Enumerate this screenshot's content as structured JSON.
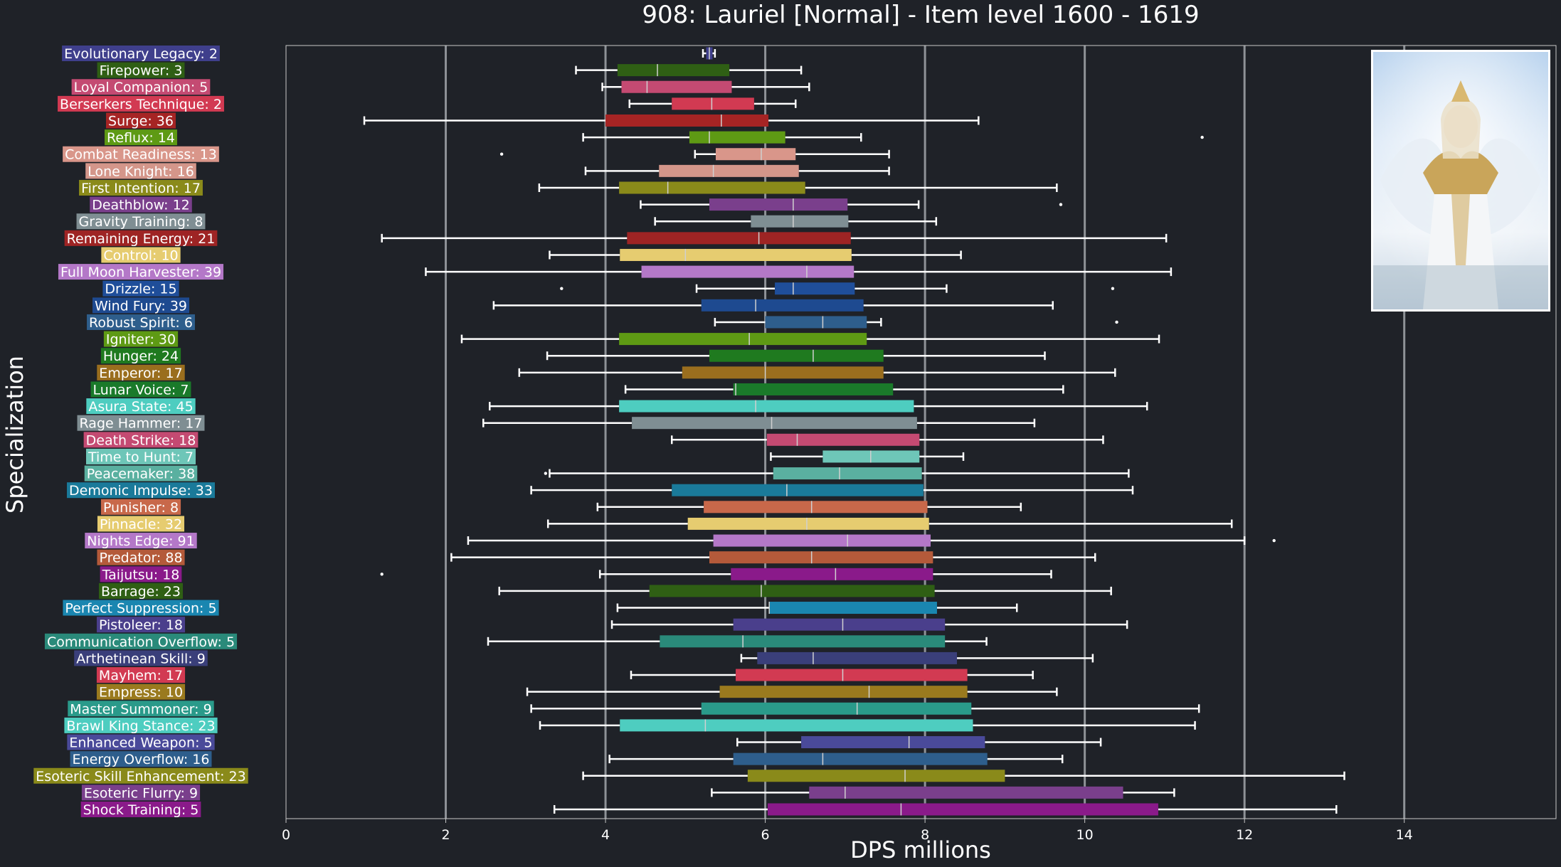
{
  "chart_data": {
    "type": "boxplot",
    "orientation": "horizontal",
    "title": "908: Lauriel [Normal] - Item level 1600 - 1619",
    "xlabel": "DPS millions",
    "ylabel": "Specialization",
    "xlim": [
      0,
      15.9
    ],
    "xticks": [
      0,
      2,
      4,
      6,
      8,
      10,
      12,
      14
    ],
    "grid": "vertical",
    "categories": [
      {
        "label": "Evolutionary Legacy: 2",
        "color": "#3f3f8c",
        "whislo": 5.22,
        "q1": 5.26,
        "med": 5.3,
        "q3": 5.34,
        "whishi": 5.37,
        "fliers": []
      },
      {
        "label": "Firepower: 3",
        "color": "#2f5f14",
        "whislo": 3.63,
        "q1": 4.15,
        "med": 4.65,
        "q3": 5.55,
        "whishi": 6.45,
        "fliers": []
      },
      {
        "label": "Loyal Companion: 5",
        "color": "#c44a72",
        "whislo": 3.96,
        "q1": 4.2,
        "med": 4.52,
        "q3": 5.58,
        "whishi": 6.55,
        "fliers": []
      },
      {
        "label": "Berserkers Technique: 2",
        "color": "#d23a52",
        "whislo": 4.3,
        "q1": 4.83,
        "med": 5.33,
        "q3": 5.86,
        "whishi": 6.38,
        "fliers": []
      },
      {
        "label": "Surge: 36",
        "color": "#a62424",
        "whislo": 0.98,
        "q1": 4.0,
        "med": 5.45,
        "q3": 6.04,
        "whishi": 8.67,
        "fliers": []
      },
      {
        "label": "Reflux: 14",
        "color": "#5e9a14",
        "whislo": 3.72,
        "q1": 5.05,
        "med": 5.3,
        "q3": 6.25,
        "whishi": 7.2,
        "fliers": [
          11.47
        ]
      },
      {
        "label": "Combat Readiness: 13",
        "color": "#d9968a",
        "whislo": 5.12,
        "q1": 5.38,
        "med": 5.95,
        "q3": 6.38,
        "whishi": 7.55,
        "fliers": [
          2.7
        ]
      },
      {
        "label": "Lone Knight: 16",
        "color": "#d4968a",
        "whislo": 3.75,
        "q1": 4.67,
        "med": 5.35,
        "q3": 6.42,
        "whishi": 7.55,
        "fliers": []
      },
      {
        "label": "First Intention: 17",
        "color": "#8a8a1a",
        "whislo": 3.17,
        "q1": 4.17,
        "med": 4.78,
        "q3": 6.5,
        "whishi": 9.65,
        "fliers": []
      },
      {
        "label": "Deathblow: 12",
        "color": "#7a3f8c",
        "whislo": 4.44,
        "q1": 5.3,
        "med": 6.35,
        "q3": 7.03,
        "whishi": 7.92,
        "fliers": [
          9.7
        ]
      },
      {
        "label": "Gravity Training: 8",
        "color": "#7f8e93",
        "whislo": 4.62,
        "q1": 5.82,
        "med": 6.35,
        "q3": 7.04,
        "whishi": 8.14,
        "fliers": []
      },
      {
        "label": "Remaining Energy: 21",
        "color": "#9e2424",
        "whislo": 1.2,
        "q1": 4.27,
        "med": 5.92,
        "q3": 7.07,
        "whishi": 11.02,
        "fliers": []
      },
      {
        "label": "Control: 10",
        "color": "#e6cc70",
        "whislo": 3.3,
        "q1": 4.18,
        "med": 5.0,
        "q3": 7.08,
        "whishi": 8.45,
        "fliers": []
      },
      {
        "label": "Full Moon Harvester: 39",
        "color": "#b478c8",
        "whislo": 1.75,
        "q1": 4.45,
        "med": 6.52,
        "q3": 7.11,
        "whishi": 11.08,
        "fliers": []
      },
      {
        "label": "Drizzle: 15",
        "color": "#1f4e9a",
        "whislo": 5.14,
        "q1": 6.12,
        "med": 6.35,
        "q3": 7.12,
        "whishi": 8.27,
        "fliers": [
          3.45,
          10.35
        ]
      },
      {
        "label": "Wind Fury: 39",
        "color": "#1e4a90",
        "whislo": 2.6,
        "q1": 5.2,
        "med": 5.88,
        "q3": 7.23,
        "whishi": 9.6,
        "fliers": []
      },
      {
        "label": "Robust Spirit: 6",
        "color": "#2e5e8c",
        "whislo": 5.37,
        "q1": 6.0,
        "med": 6.72,
        "q3": 7.27,
        "whishi": 7.45,
        "fliers": [
          10.4
        ]
      },
      {
        "label": "Igniter: 30",
        "color": "#5e9a14",
        "whislo": 2.2,
        "q1": 4.17,
        "med": 5.8,
        "q3": 7.27,
        "whishi": 10.93,
        "fliers": []
      },
      {
        "label": "Hunger: 24",
        "color": "#1f7a1f",
        "whislo": 3.27,
        "q1": 5.3,
        "med": 6.6,
        "q3": 7.48,
        "whishi": 9.5,
        "fliers": []
      },
      {
        "label": "Emperor: 17",
        "color": "#9a6e1e",
        "whislo": 2.92,
        "q1": 4.96,
        "med": 6.0,
        "q3": 7.48,
        "whishi": 10.38,
        "fliers": []
      },
      {
        "label": "Lunar Voice: 7",
        "color": "#1a7a2a",
        "whislo": 4.25,
        "q1": 5.6,
        "med": 5.63,
        "q3": 7.6,
        "whishi": 9.73,
        "fliers": []
      },
      {
        "label": "Asura State: 45",
        "color": "#4ecdc0",
        "whislo": 2.55,
        "q1": 4.17,
        "med": 5.88,
        "q3": 7.86,
        "whishi": 10.78,
        "fliers": []
      },
      {
        "label": "Rage Hammer: 17",
        "color": "#7f8e93",
        "whislo": 2.47,
        "q1": 4.33,
        "med": 6.08,
        "q3": 7.9,
        "whishi": 9.37,
        "fliers": []
      },
      {
        "label": "Death Strike: 18",
        "color": "#c44a72",
        "whislo": 4.83,
        "q1": 6.02,
        "med": 6.4,
        "q3": 7.93,
        "whishi": 10.23,
        "fliers": []
      },
      {
        "label": "Time to Hunt: 7",
        "color": "#6ec6b8",
        "whislo": 6.07,
        "q1": 6.72,
        "med": 7.32,
        "q3": 7.93,
        "whishi": 8.48,
        "fliers": []
      },
      {
        "label": "Peacemaker: 38",
        "color": "#5ab0a0",
        "whislo": 3.3,
        "q1": 6.1,
        "med": 6.93,
        "q3": 7.96,
        "whishi": 10.55,
        "fliers": [
          3.25
        ]
      },
      {
        "label": "Demonic Impulse: 33",
        "color": "#1a7a9a",
        "whislo": 3.07,
        "q1": 4.83,
        "med": 6.27,
        "q3": 7.98,
        "whishi": 10.6,
        "fliers": []
      },
      {
        "label": "Punisher: 8",
        "color": "#c8684a",
        "whislo": 3.9,
        "q1": 5.23,
        "med": 6.58,
        "q3": 8.03,
        "whishi": 9.2,
        "fliers": []
      },
      {
        "label": "Pinnacle: 32",
        "color": "#e6cc70",
        "whislo": 3.28,
        "q1": 5.03,
        "med": 6.52,
        "q3": 8.05,
        "whishi": 11.84,
        "fliers": []
      },
      {
        "label": "Nights Edge: 91",
        "color": "#b478c8",
        "whislo": 2.28,
        "q1": 5.35,
        "med": 7.03,
        "q3": 8.07,
        "whishi": 12.0,
        "fliers": [
          12.37
        ]
      },
      {
        "label": "Predator: 88",
        "color": "#b45a3a",
        "whislo": 2.07,
        "q1": 5.3,
        "med": 6.58,
        "q3": 8.1,
        "whishi": 10.13,
        "fliers": []
      },
      {
        "label": "Taijutsu: 18",
        "color": "#8a1a8a",
        "whislo": 3.93,
        "q1": 5.57,
        "med": 6.88,
        "q3": 8.1,
        "whishi": 9.58,
        "fliers": [
          1.2
        ]
      },
      {
        "label": "Barrage: 23",
        "color": "#2f5f14",
        "whislo": 2.67,
        "q1": 4.55,
        "med": 5.95,
        "q3": 8.12,
        "whishi": 10.33,
        "fliers": []
      },
      {
        "label": "Perfect Suppression: 5",
        "color": "#1a86b0",
        "whislo": 4.15,
        "q1": 6.05,
        "med": 6.05,
        "q3": 8.15,
        "whishi": 9.15,
        "fliers": []
      },
      {
        "label": "Pistoleer: 18",
        "color": "#4a3f8c",
        "whislo": 4.08,
        "q1": 5.6,
        "med": 6.97,
        "q3": 8.25,
        "whishi": 10.53,
        "fliers": []
      },
      {
        "label": "Communication Overflow: 5",
        "color": "#2a8a7a",
        "whislo": 2.53,
        "q1": 4.68,
        "med": 5.72,
        "q3": 8.25,
        "whishi": 8.77,
        "fliers": []
      },
      {
        "label": "Arthetinean Skill: 9",
        "color": "#3a3f7a",
        "whislo": 5.7,
        "q1": 5.9,
        "med": 6.6,
        "q3": 8.4,
        "whishi": 10.1,
        "fliers": []
      },
      {
        "label": "Mayhem: 17",
        "color": "#d23a52",
        "whislo": 4.32,
        "q1": 5.63,
        "med": 6.97,
        "q3": 8.53,
        "whishi": 9.35,
        "fliers": []
      },
      {
        "label": "Empress: 10",
        "color": "#9a7a1e",
        "whislo": 3.02,
        "q1": 5.43,
        "med": 7.3,
        "q3": 8.53,
        "whishi": 9.65,
        "fliers": []
      },
      {
        "label": "Master Summoner: 9",
        "color": "#2a9a8a",
        "whislo": 3.07,
        "q1": 5.2,
        "med": 7.15,
        "q3": 8.58,
        "whishi": 11.43,
        "fliers": []
      },
      {
        "label": "Brawl King Stance: 23",
        "color": "#4ecdc0",
        "whislo": 3.18,
        "q1": 4.18,
        "med": 5.25,
        "q3": 8.6,
        "whishi": 11.38,
        "fliers": []
      },
      {
        "label": "Enhanced Weapon: 5",
        "color": "#4a4a9a",
        "whislo": 5.65,
        "q1": 6.45,
        "med": 7.8,
        "q3": 8.75,
        "whishi": 10.2,
        "fliers": []
      },
      {
        "label": "Energy Overflow: 16",
        "color": "#2e5e8c",
        "whislo": 4.05,
        "q1": 5.6,
        "med": 6.72,
        "q3": 8.78,
        "whishi": 9.72,
        "fliers": []
      },
      {
        "label": "Esoteric Skill Enhancement: 23",
        "color": "#8a8a1a",
        "whislo": 3.72,
        "q1": 5.78,
        "med": 7.75,
        "q3": 9.0,
        "whishi": 13.25,
        "fliers": []
      },
      {
        "label": "Esoteric Flurry: 9",
        "color": "#7a3f8c",
        "whislo": 5.33,
        "q1": 6.55,
        "med": 7.0,
        "q3": 10.48,
        "whishi": 11.12,
        "fliers": []
      },
      {
        "label": "Shock Training: 5",
        "color": "#8a1a8a",
        "whislo": 3.36,
        "q1": 6.03,
        "med": 7.7,
        "q3": 10.92,
        "whishi": 13.15,
        "fliers": []
      }
    ]
  }
}
